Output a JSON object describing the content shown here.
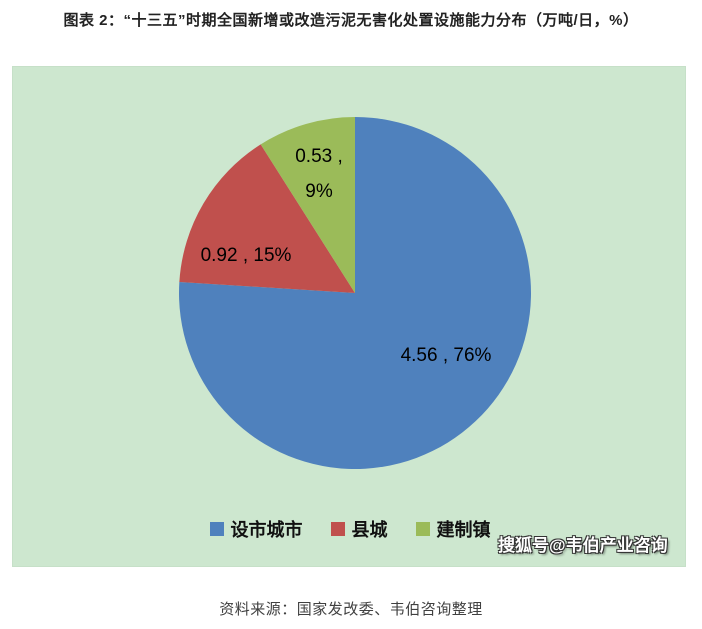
{
  "title": "图表 2：“十三五”时期全国新增或改造污泥无害化处置设施能力分布（万吨/日，%）",
  "chart_data": {
    "type": "pie",
    "title": "“十三五”时期全国新增或改造污泥无害化处置设施能力分布",
    "unit": "万吨/日，%",
    "start_angle_deg": 0,
    "direction": "clockwise",
    "legend_position": "bottom",
    "panel_bg": "#cde7cf",
    "slices": [
      {
        "label": "设市城市",
        "value": 4.56,
        "percent": 76,
        "color": "#4F81BD",
        "data_label": "4.56 , 76%"
      },
      {
        "label": "县城",
        "value": 0.92,
        "percent": 15,
        "color": "#C0504D",
        "data_label": "0.92 , 15%"
      },
      {
        "label": "建制镇",
        "value": 0.53,
        "percent": 9,
        "color": "#9BBB59",
        "data_label": "0.53 , 9%",
        "data_label_lines": [
          "0.53 ,",
          "9%"
        ]
      }
    ]
  },
  "watermark": "搜狐号@韦伯产业咨询",
  "source": "资料来源：国家发改委、韦伯咨询整理"
}
